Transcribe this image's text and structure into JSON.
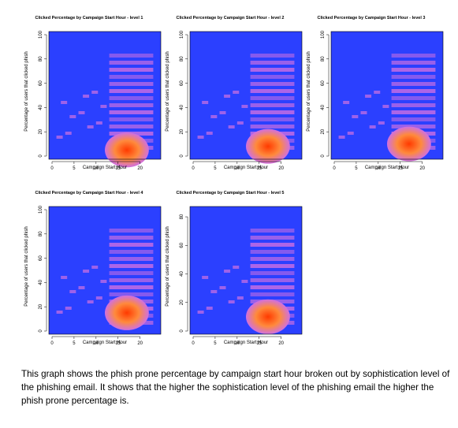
{
  "caption": "This graph shows the phish prone percentage by campaign start hour broken out by sophistication level of the phishing email. It shows that the higher the sophistication level of the phishing email the higher the phish prone percentage is.",
  "colors": {
    "background": "#2b40ff",
    "low": "#d070e0",
    "mid": "#ff8a3c",
    "high": "#ff3a00"
  },
  "chart_data": [
    {
      "type": "heatmap",
      "title": "Clicked Percentage by Campaign Start Hour - level 1",
      "xlabel": "Campaign Start Hour",
      "ylabel": "Percentage of users that clicked phish",
      "xticks": [
        "0",
        "5",
        "10",
        "15",
        "20"
      ],
      "yticks": [
        "0",
        "20",
        "40",
        "60",
        "80",
        "100"
      ],
      "xlim": [
        0,
        24
      ],
      "ylim": [
        0,
        100
      ],
      "hot_spot": {
        "hour": 17,
        "percentage": 5
      }
    },
    {
      "type": "heatmap",
      "title": "Clicked Percentage by Campaign Start Hour - level 2",
      "xlabel": "Campaign Start Hour",
      "ylabel": "Percentage of users that clicked phish",
      "xticks": [
        "0",
        "5",
        "10",
        "15",
        "20"
      ],
      "yticks": [
        "0",
        "20",
        "40",
        "60",
        "80",
        "100"
      ],
      "xlim": [
        0,
        24
      ],
      "ylim": [
        0,
        100
      ],
      "hot_spot": {
        "hour": 17,
        "percentage": 8
      }
    },
    {
      "type": "heatmap",
      "title": "Clicked Percentage by Campaign Start Hour - level 3",
      "xlabel": "Campaign Start Hour",
      "ylabel": "Percentage of users that clicked phish",
      "xticks": [
        "0",
        "5",
        "10",
        "15",
        "20"
      ],
      "yticks": [
        "0",
        "20",
        "40",
        "60",
        "80",
        "100"
      ],
      "xlim": [
        0,
        24
      ],
      "ylim": [
        0,
        100
      ],
      "hot_spot": {
        "hour": 17,
        "percentage": 10
      }
    },
    {
      "type": "heatmap",
      "title": "Clicked Percentage by Campaign Start Hour - level 4",
      "xlabel": "Campaign Start Hour",
      "ylabel": "Percentage of users that clicked phish",
      "xticks": [
        "0",
        "5",
        "10",
        "15",
        "20"
      ],
      "yticks": [
        "0",
        "20",
        "40",
        "60",
        "80",
        "100"
      ],
      "xlim": [
        0,
        24
      ],
      "ylim": [
        0,
        100
      ],
      "hot_spot": {
        "hour": 17,
        "percentage": 15
      }
    },
    {
      "type": "heatmap",
      "title": "Clicked Percentage by Campaign Start Hour - level 5",
      "xlabel": "Campaign Start Hour",
      "ylabel": "Percentage of users that clicked phish",
      "xticks": [
        "0",
        "5",
        "10",
        "15",
        "20"
      ],
      "yticks": [
        "0",
        "20",
        "40",
        "60",
        "80"
      ],
      "xlim": [
        0,
        24
      ],
      "ylim": [
        0,
        85
      ],
      "hot_spot": {
        "hour": 17,
        "percentage": 10
      }
    }
  ]
}
